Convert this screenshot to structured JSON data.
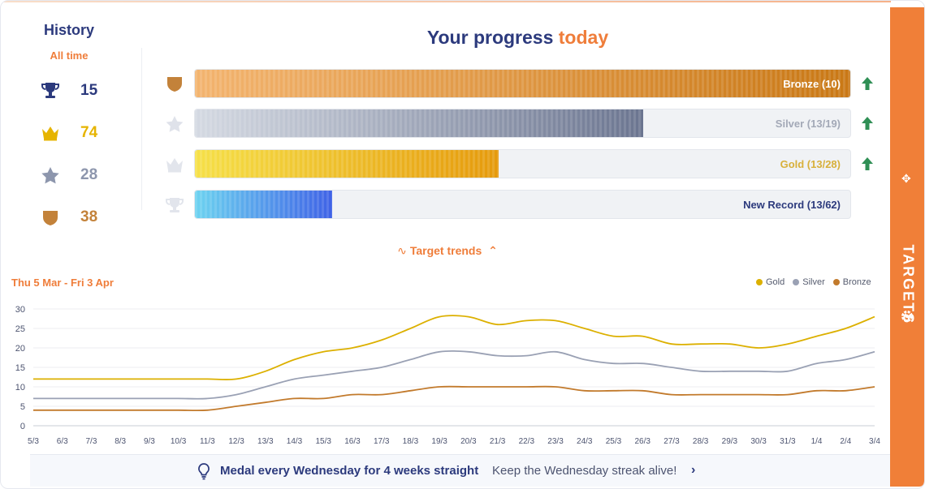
{
  "history": {
    "title": "History",
    "subtitle": "All time",
    "items": [
      {
        "icon": "trophy-icon",
        "value": "15",
        "color": "#2c3a7d"
      },
      {
        "icon": "crown-icon",
        "value": "74",
        "color": "#e6b400"
      },
      {
        "icon": "star-icon",
        "value": "28",
        "color": "#8d96ad"
      },
      {
        "icon": "shield-icon",
        "value": "38",
        "color": "#c3823a"
      }
    ]
  },
  "progress": {
    "title_main": "Your progress",
    "title_accent": "today",
    "rows": [
      {
        "icon": "shield-icon",
        "label": "Bronze (10)",
        "progress": 1.0,
        "label_color": "#ffffff",
        "arrow": true
      },
      {
        "icon": "star-icon",
        "label": "Silver (13/19)",
        "progress": 0.684,
        "label_color": "#a3a9b7",
        "arrow": true
      },
      {
        "icon": "crown-icon",
        "label": "Gold (13/28)",
        "progress": 0.464,
        "label_color": "#d8b03a",
        "arrow": true
      },
      {
        "icon": "trophy-icon",
        "label": "New Record (13/62)",
        "progress": 0.21,
        "label_color": "#2c3a7d",
        "arrow": false
      }
    ]
  },
  "trends": {
    "label": "Target trends"
  },
  "date_range": "Thu 5 Mar - Fri 3 Apr",
  "rail": {
    "label": "TARGETS"
  },
  "colors": {
    "accent": "#ef7d3a",
    "navy": "#2c3a7d",
    "gold": "#dcb000",
    "silver": "#9aa1b4",
    "bronze": "#c27a2c"
  },
  "footer": {
    "main": "Medal every Wednesday for 4 weeks straight",
    "sub": "Keep the Wednesday streak alive!"
  },
  "chart_data": {
    "type": "line",
    "x": [
      "5/3",
      "6/3",
      "7/3",
      "8/3",
      "9/3",
      "10/3",
      "11/3",
      "12/3",
      "13/3",
      "14/3",
      "15/3",
      "16/3",
      "17/3",
      "18/3",
      "19/3",
      "20/3",
      "21/3",
      "22/3",
      "23/3",
      "24/3",
      "25/3",
      "26/3",
      "27/3",
      "28/3",
      "29/3",
      "30/3",
      "31/3",
      "1/4",
      "2/4",
      "3/4"
    ],
    "series": [
      {
        "name": "Gold",
        "color": "#dcb000",
        "values": [
          12,
          12,
          12,
          12,
          12,
          12,
          12,
          12,
          14,
          17,
          19,
          20,
          22,
          25,
          28,
          28,
          26,
          27,
          27,
          25,
          23,
          23,
          21,
          21,
          21,
          20,
          21,
          23,
          25,
          28
        ]
      },
      {
        "name": "Silver",
        "color": "#9aa1b4",
        "values": [
          7,
          7,
          7,
          7,
          7,
          7,
          7,
          8,
          10,
          12,
          13,
          14,
          15,
          17,
          19,
          19,
          18,
          18,
          19,
          17,
          16,
          16,
          15,
          14,
          14,
          14,
          14,
          16,
          17,
          19
        ]
      },
      {
        "name": "Bronze",
        "color": "#c27a2c",
        "values": [
          4,
          4,
          4,
          4,
          4,
          4,
          4,
          5,
          6,
          7,
          7,
          8,
          8,
          9,
          10,
          10,
          10,
          10,
          10,
          9,
          9,
          9,
          8,
          8,
          8,
          8,
          8,
          9,
          9,
          10
        ]
      }
    ],
    "yticks": [
      0,
      5,
      10,
      15,
      20,
      25,
      30
    ],
    "ylim": [
      0,
      30
    ],
    "legend": "top-right",
    "grid": true
  }
}
